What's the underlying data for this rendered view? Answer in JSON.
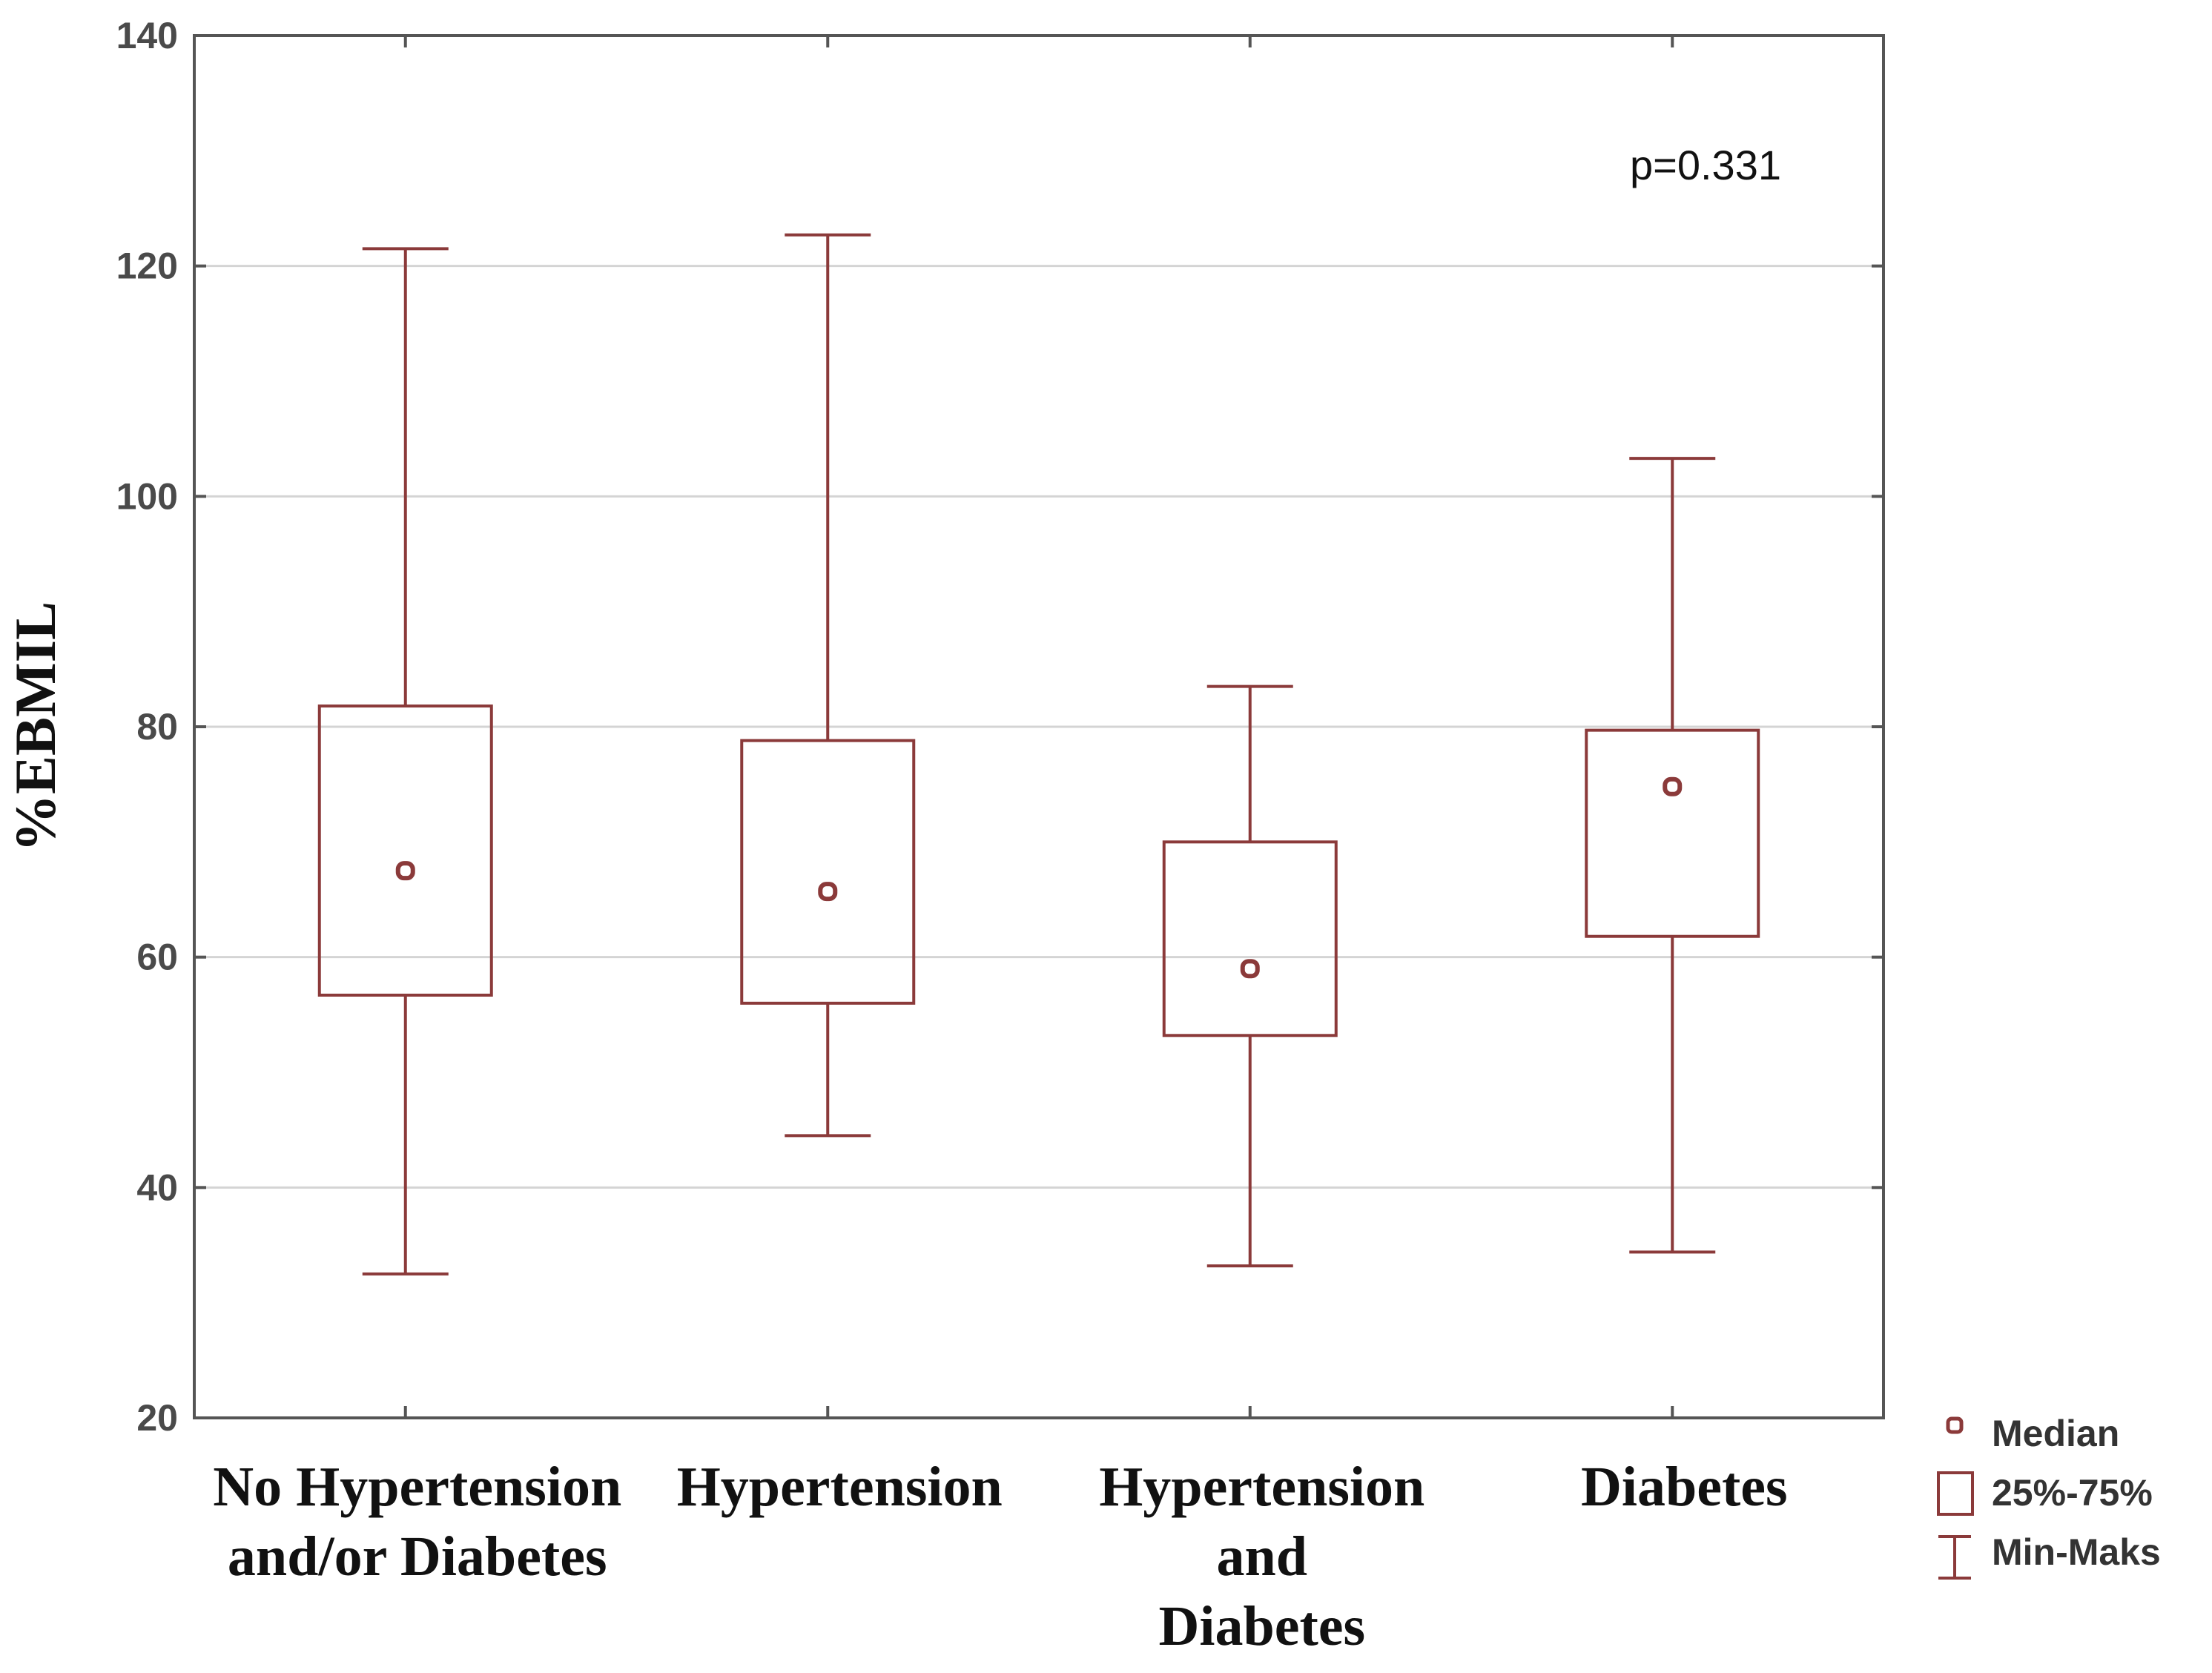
{
  "chart_data": {
    "type": "box",
    "title": "",
    "xlabel": "",
    "ylabel": "%EBMIL",
    "ylim": [
      20,
      140
    ],
    "yticks": [
      20,
      40,
      60,
      80,
      100,
      120,
      140
    ],
    "grid": true,
    "annotation": "p=0.331",
    "colors": {
      "box": "#8b3a3a",
      "grid": "#d4d4d4",
      "frame": "#555555"
    },
    "categories": [
      {
        "lines": [
          "No Hypertension",
          "and/or Diabetes"
        ],
        "min": 32.5,
        "q1": 56.7,
        "median": 67.5,
        "q3": 81.8,
        "max": 121.5
      },
      {
        "lines": [
          "Hypertension"
        ],
        "min": 44.5,
        "q1": 56,
        "median": 65.7,
        "q3": 78.8,
        "max": 122.7
      },
      {
        "lines": [
          "Hypertension",
          "and",
          "Diabetes"
        ],
        "min": 33.2,
        "q1": 53.2,
        "median": 59,
        "q3": 70,
        "max": 83.5
      },
      {
        "lines": [
          "Diabetes"
        ],
        "min": 34.4,
        "q1": 61.8,
        "median": 74.8,
        "q3": 79.7,
        "max": 103.3
      }
    ],
    "legend": {
      "position": "bottom-right",
      "entries": [
        "Median",
        "25%-75%",
        "Min-Maks"
      ]
    }
  }
}
